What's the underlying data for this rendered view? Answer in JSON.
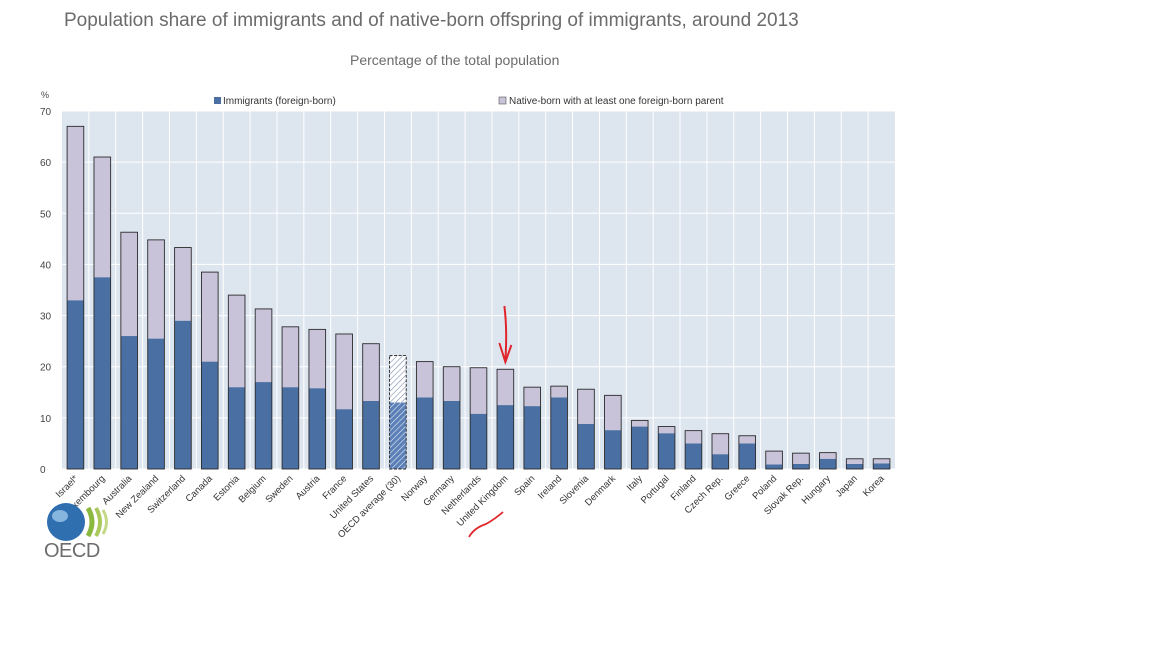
{
  "title": "Population share of immigrants and of native-born offspring of immigrants, around 2013",
  "subtitle": "Percentage of the total population",
  "colors": {
    "immigrants": "#4a6fa3",
    "native_born": "#c9c3da",
    "plot_bg": "#dde5ef",
    "grid": "#ffffff",
    "annotation": "#e0252a"
  },
  "logo": {
    "text": "OECD",
    "icon": "oecd-logo-icon"
  },
  "annotation": {
    "arrow_target": "United Kingdom",
    "icon": "red-arrow-icon"
  },
  "chart_data": {
    "type": "bar",
    "stacked": true,
    "title": "Population share of immigrants and of native-born offspring of immigrants, around 2013",
    "subtitle": "Percentage of the total population",
    "ylabel": "%",
    "ylim": [
      0,
      70
    ],
    "yticks": [
      0,
      10,
      20,
      30,
      40,
      50,
      60,
      70
    ],
    "grid": true,
    "legend_position": "top",
    "categories": [
      "Israel*",
      "Luxembourg",
      "Australia",
      "New Zealand",
      "Switzerland",
      "Canada",
      "Estonia",
      "Belgium",
      "Sweden",
      "Austria",
      "France",
      "United States",
      "OECD average (30)",
      "Norway",
      "Germany",
      "Netherlands",
      "United Kingdom",
      "Spain",
      "Ireland",
      "Slovenia",
      "Denmark",
      "Italy",
      "Portugal",
      "Finland",
      "Czech Rep.",
      "Greece",
      "Poland",
      "Slovak Rep.",
      "Hungary",
      "Japan",
      "Korea"
    ],
    "series": [
      {
        "name": "Immigrants (foreign-born)",
        "values": [
          33,
          37.5,
          26,
          25.5,
          29,
          21,
          16,
          17,
          16,
          15.8,
          11.7,
          13.3,
          13,
          14,
          13.3,
          10.8,
          12.5,
          12.3,
          14,
          8.8,
          7.6,
          8.3,
          7,
          5,
          2.9,
          5,
          0.9,
          1,
          2,
          1,
          1.1
        ]
      },
      {
        "name": "Native-born with at least one foreign-born parent",
        "values": [
          34,
          23.5,
          20.3,
          19.3,
          14.3,
          17.5,
          18,
          14.3,
          11.8,
          11.5,
          14.7,
          11.2,
          9.2,
          7,
          6.7,
          9,
          7,
          3.7,
          2.2,
          6.8,
          6.8,
          1.2,
          1.3,
          2.5,
          4,
          1.5,
          2.6,
          2.1,
          1.2,
          1,
          0.9
        ]
      }
    ]
  }
}
